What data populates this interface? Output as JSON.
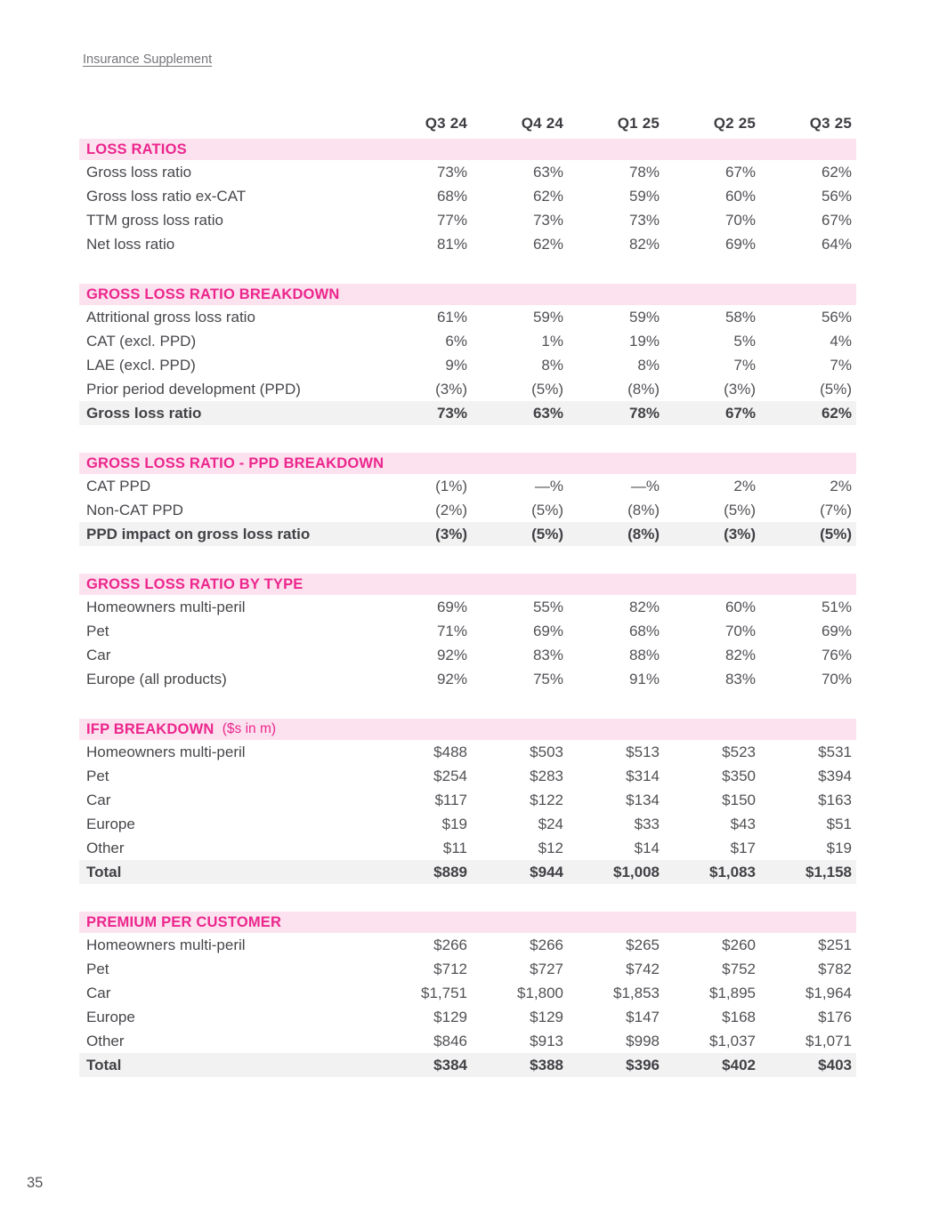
{
  "page": {
    "header_link": "Insurance Supplement",
    "page_number": "35"
  },
  "colors": {
    "accent_pink": "#ec268d",
    "band_background": "#fce2ef",
    "total_row_background": "#f2f2f2",
    "header_text": "#3d3d42",
    "body_text": "#515156",
    "link_text": "#75757a"
  },
  "table": {
    "columns": [
      "Q3 24",
      "Q4 24",
      "Q1 25",
      "Q2 25",
      "Q3 25"
    ],
    "sections": [
      {
        "title": "LOSS RATIOS",
        "suffix": "",
        "rows": [
          {
            "label": "Gross loss ratio",
            "values": [
              "73%",
              "63%",
              "78%",
              "67%",
              "62%"
            ],
            "total": false
          },
          {
            "label": "Gross loss ratio ex-CAT",
            "values": [
              "68%",
              "62%",
              "59%",
              "60%",
              "56%"
            ],
            "total": false
          },
          {
            "label": "TTM gross loss ratio",
            "values": [
              "77%",
              "73%",
              "73%",
              "70%",
              "67%"
            ],
            "total": false
          },
          {
            "label": "Net loss ratio",
            "values": [
              "81%",
              "62%",
              "82%",
              "69%",
              "64%"
            ],
            "total": false
          }
        ]
      },
      {
        "title": "GROSS LOSS RATIO BREAKDOWN",
        "suffix": "",
        "rows": [
          {
            "label": "Attritional gross loss ratio",
            "values": [
              "61%",
              "59%",
              "59%",
              "58%",
              "56%"
            ],
            "total": false
          },
          {
            "label": "CAT (excl. PPD)",
            "values": [
              "6%",
              "1%",
              "19%",
              "5%",
              "4%"
            ],
            "total": false
          },
          {
            "label": "LAE (excl. PPD)",
            "values": [
              "9%",
              "8%",
              "8%",
              "7%",
              "7%"
            ],
            "total": false
          },
          {
            "label": "Prior period development (PPD)",
            "values": [
              "(3%)",
              "(5%)",
              "(8%)",
              "(3%)",
              "(5%)"
            ],
            "total": false
          },
          {
            "label": "Gross loss ratio",
            "values": [
              "73%",
              "63%",
              "78%",
              "67%",
              "62%"
            ],
            "total": true
          }
        ]
      },
      {
        "title": "GROSS LOSS RATIO - PPD BREAKDOWN",
        "suffix": "",
        "rows": [
          {
            "label": "CAT PPD",
            "values": [
              "(1%)",
              "—%",
              "—%",
              "2%",
              "2%"
            ],
            "total": false
          },
          {
            "label": "Non-CAT PPD",
            "values": [
              "(2%)",
              "(5%)",
              "(8%)",
              "(5%)",
              "(7%)"
            ],
            "total": false
          },
          {
            "label": "PPD impact on gross loss ratio",
            "values": [
              "(3%)",
              "(5%)",
              "(8%)",
              "(3%)",
              "(5%)"
            ],
            "total": true
          }
        ]
      },
      {
        "title": "GROSS LOSS RATIO BY TYPE",
        "suffix": "",
        "rows": [
          {
            "label": "Homeowners multi-peril",
            "values": [
              "69%",
              "55%",
              "82%",
              "60%",
              "51%"
            ],
            "total": false
          },
          {
            "label": "Pet",
            "values": [
              "71%",
              "69%",
              "68%",
              "70%",
              "69%"
            ],
            "total": false
          },
          {
            "label": "Car",
            "values": [
              "92%",
              "83%",
              "88%",
              "82%",
              "76%"
            ],
            "total": false
          },
          {
            "label": "Europe (all products)",
            "values": [
              "92%",
              "75%",
              "91%",
              "83%",
              "70%"
            ],
            "total": false
          }
        ]
      },
      {
        "title": "IFP BREAKDOWN",
        "suffix": " ($s in m)",
        "rows": [
          {
            "label": "Homeowners multi-peril",
            "values": [
              "$488",
              "$503",
              "$513",
              "$523",
              "$531"
            ],
            "total": false
          },
          {
            "label": "Pet",
            "values": [
              "$254",
              "$283",
              "$314",
              "$350",
              "$394"
            ],
            "total": false
          },
          {
            "label": "Car",
            "values": [
              "$117",
              "$122",
              "$134",
              "$150",
              "$163"
            ],
            "total": false
          },
          {
            "label": "Europe",
            "values": [
              "$19",
              "$24",
              "$33",
              "$43",
              "$51"
            ],
            "total": false
          },
          {
            "label": "Other",
            "values": [
              "$11",
              "$12",
              "$14",
              "$17",
              "$19"
            ],
            "total": false
          },
          {
            "label": "Total",
            "values": [
              "$889",
              "$944",
              "$1,008",
              "$1,083",
              "$1,158"
            ],
            "total": true
          }
        ]
      },
      {
        "title": "PREMIUM PER CUSTOMER",
        "suffix": "",
        "rows": [
          {
            "label": "Homeowners multi-peril",
            "values": [
              "$266",
              "$266",
              "$265",
              "$260",
              "$251"
            ],
            "total": false
          },
          {
            "label": "Pet",
            "values": [
              "$712",
              "$727",
              "$742",
              "$752",
              "$782"
            ],
            "total": false
          },
          {
            "label": "Car",
            "values": [
              "$1,751",
              "$1,800",
              "$1,853",
              "$1,895",
              "$1,964"
            ],
            "total": false
          },
          {
            "label": "Europe",
            "values": [
              "$129",
              "$129",
              "$147",
              "$168",
              "$176"
            ],
            "total": false
          },
          {
            "label": "Other",
            "values": [
              "$846",
              "$913",
              "$998",
              "$1,037",
              "$1,071"
            ],
            "total": false
          },
          {
            "label": "Total",
            "values": [
              "$384",
              "$388",
              "$396",
              "$402",
              "$403"
            ],
            "total": true
          }
        ]
      }
    ]
  }
}
